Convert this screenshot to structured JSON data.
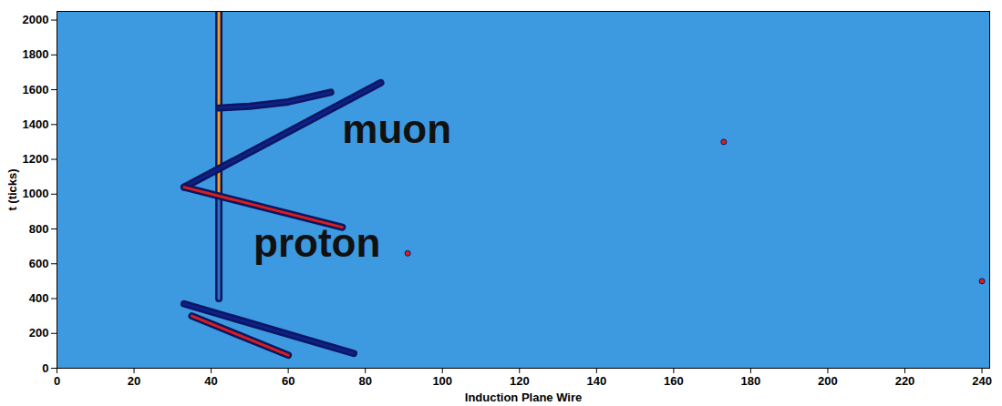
{
  "chart_data": {
    "type": "event_display",
    "x_label": "Induction Plane Wire",
    "y_label": "t (ticks)",
    "xlim": [
      0,
      242
    ],
    "ylim": [
      0,
      2050
    ],
    "xticks": [
      0,
      20,
      40,
      60,
      80,
      100,
      120,
      140,
      160,
      180,
      200,
      220,
      240
    ],
    "yticks": [
      0,
      200,
      400,
      600,
      800,
      1000,
      1200,
      1400,
      1600,
      1800,
      2000
    ],
    "color": "#3d9ae0",
    "tracks": [
      {
        "points": [
          [
            42,
            400
          ],
          [
            42,
            1000
          ]
        ],
        "color": "#2d74c4"
      },
      {
        "points": [
          [
            42,
            1000
          ],
          [
            42,
            2050
          ]
        ],
        "color": "#f0a020"
      },
      {
        "points": [
          [
            33,
            1040
          ],
          [
            84,
            1640
          ]
        ],
        "color": "#10208a"
      },
      {
        "points": [
          [
            33,
            1040
          ],
          [
            74,
            810
          ]
        ],
        "color": "#d81e1e"
      },
      {
        "points": [
          [
            42,
            1495
          ],
          [
            50,
            1505
          ],
          [
            60,
            1530
          ],
          [
            71,
            1585
          ]
        ],
        "color": "#10208a"
      },
      {
        "points": [
          [
            33,
            370
          ],
          [
            77,
            85
          ]
        ],
        "color": "#10208a"
      },
      {
        "points": [
          [
            35,
            300
          ],
          [
            60,
            75
          ]
        ],
        "color": "#d81e1e"
      }
    ],
    "hits": [
      [
        173,
        1300
      ],
      [
        240,
        500
      ],
      [
        91,
        660
      ]
    ],
    "annotations": [
      {
        "text": "muon",
        "x": 74,
        "y": 1370
      },
      {
        "text": "proton",
        "x": 51,
        "y": 713
      }
    ]
  }
}
